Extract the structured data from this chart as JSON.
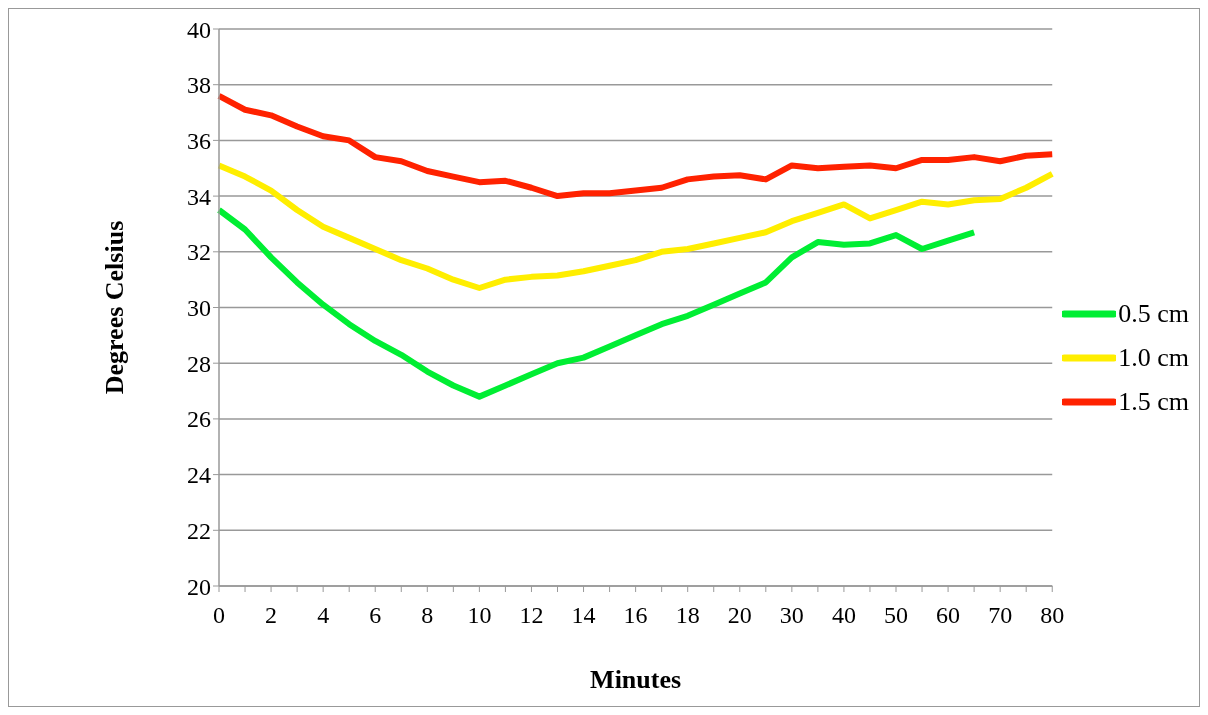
{
  "chart_data": {
    "type": "line",
    "xlabel": "Minutes",
    "ylabel": "Degrees Celsius",
    "categories": [
      "0",
      null,
      "2",
      null,
      "4",
      null,
      "6",
      null,
      "8",
      null,
      "10",
      null,
      "12",
      null,
      "14",
      null,
      "16",
      null,
      "18",
      null,
      "20",
      null,
      "30",
      null,
      "40",
      null,
      "50",
      null,
      "60",
      null,
      "70",
      null,
      "80"
    ],
    "series": [
      {
        "name": "0.5 cm",
        "color": "#00ee33",
        "values": [
          33.5,
          32.8,
          31.8,
          30.9,
          30.1,
          29.4,
          28.8,
          28.3,
          27.7,
          27.2,
          26.8,
          27.2,
          27.6,
          28.0,
          28.2,
          28.6,
          29.0,
          29.4,
          29.7,
          30.1,
          30.5,
          30.9,
          31.8,
          32.35,
          32.25,
          32.3,
          32.6,
          32.1,
          32.4,
          32.7,
          null,
          null,
          null
        ]
      },
      {
        "name": "1.0 cm",
        "color": "#ffee00",
        "values": [
          35.1,
          34.7,
          34.2,
          33.5,
          32.9,
          32.5,
          32.1,
          31.7,
          31.4,
          31.0,
          30.7,
          31.0,
          31.1,
          31.15,
          31.3,
          31.5,
          31.7,
          32.0,
          32.1,
          32.3,
          32.5,
          32.7,
          33.1,
          33.4,
          33.7,
          33.2,
          33.5,
          33.8,
          33.7,
          33.85,
          33.9,
          34.3,
          34.8
        ]
      },
      {
        "name": "1.5 cm",
        "color": "#ff2200",
        "values": [
          37.6,
          37.1,
          36.9,
          36.5,
          36.15,
          36.0,
          35.4,
          35.25,
          34.9,
          34.7,
          34.5,
          34.55,
          34.3,
          34.0,
          34.1,
          34.1,
          34.2,
          34.3,
          34.6,
          34.7,
          34.75,
          34.6,
          35.1,
          35.0,
          35.05,
          35.1,
          35.0,
          35.3,
          35.3,
          35.4,
          35.25,
          35.45,
          35.5
        ]
      }
    ],
    "ylim": [
      20,
      40
    ],
    "yticks": [
      20,
      22,
      24,
      26,
      28,
      30,
      32,
      34,
      36,
      38,
      40
    ],
    "grid": "y",
    "legend": "right",
    "marker": "none",
    "line_style": "solid"
  }
}
